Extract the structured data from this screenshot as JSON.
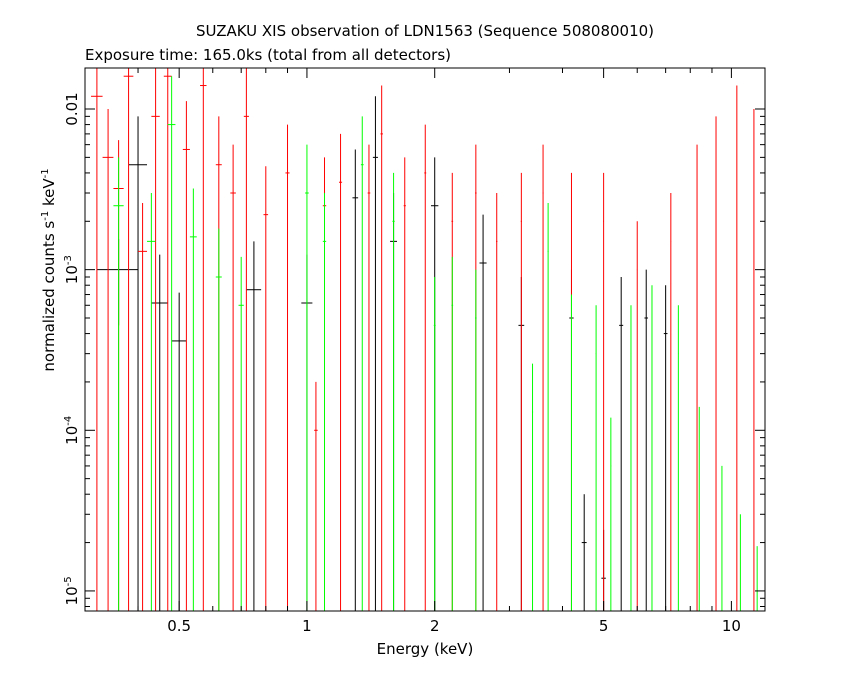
{
  "chart_data": {
    "type": "scatter",
    "title": "SUZAKU XIS observation of LDN1563 (Sequence 508080010)",
    "subtitle": "Exposure time: 165.0ks (total from all detectors)",
    "xlabel": "Energy (keV)",
    "ylabel_main": "normalized counts s",
    "ylabel_mid": " keV",
    "ylabel_sup": "-1",
    "xscale": "log",
    "yscale": "log",
    "xlim": [
      0.3,
      12
    ],
    "ylim": [
      7.5e-06,
      0.018
    ],
    "x_ticks": [
      {
        "value": 0.5,
        "label": "0.5"
      },
      {
        "value": 1,
        "label": "1"
      },
      {
        "value": 2,
        "label": "2"
      },
      {
        "value": 5,
        "label": "5"
      },
      {
        "value": 10,
        "label": "10"
      }
    ],
    "y_ticks": [
      {
        "value": 1e-05,
        "base": "10",
        "exp": "-5"
      },
      {
        "value": 0.0001,
        "base": "10",
        "exp": "-4"
      },
      {
        "value": 0.001,
        "base": "10",
        "exp": "-3"
      },
      {
        "value": 0.01,
        "base": "0.01",
        "exp": ""
      }
    ],
    "series": [
      {
        "color": "#000000",
        "points": [
          [
            0.36,
            0.001,
            0.04,
            0.00055
          ],
          [
            0.4,
            0.0045,
            0.02,
            0.0045
          ],
          [
            0.45,
            0.00062,
            0.02,
            0.00062
          ],
          [
            0.5,
            0.00036,
            0.02,
            0.00036
          ],
          [
            0.75,
            0.00075,
            0.03,
            0.00075
          ],
          [
            1.0,
            0.00062,
            0.03,
            0.00062
          ],
          [
            1.3,
            0.0028,
            0.02,
            0.0028
          ],
          [
            1.45,
            0.005,
            0.02,
            0.007
          ],
          [
            1.6,
            0.0015,
            0.03,
            0.0015
          ],
          [
            2.0,
            0.0025,
            0.04,
            0.0025
          ],
          [
            2.6,
            0.0011,
            0.05,
            0.0011
          ],
          [
            3.2,
            0.00045,
            0.05,
            0.00045
          ],
          [
            4.2,
            0.0005,
            0.05,
            0.0005
          ],
          [
            4.5,
            2e-05,
            0.06,
            2e-05
          ],
          [
            5.0,
            1.2e-05,
            0.06,
            1.2e-05
          ],
          [
            5.5,
            0.00045,
            0.06,
            0.00045
          ],
          [
            6.3,
            0.0005,
            0.06,
            0.0005
          ],
          [
            7.0,
            0.0004,
            0.07,
            0.0004
          ]
        ]
      },
      {
        "color": "#ff0000",
        "points": [
          [
            0.32,
            0.012,
            0.01,
            0.012
          ],
          [
            0.34,
            0.005,
            0.01,
            0.005
          ],
          [
            0.36,
            0.0032,
            0.01,
            0.0032
          ],
          [
            0.38,
            0.016,
            0.01,
            0.016
          ],
          [
            0.41,
            0.0013,
            0.01,
            0.0013
          ],
          [
            0.44,
            0.009,
            0.01,
            0.009
          ],
          [
            0.47,
            0.016,
            0.01,
            0.016
          ],
          [
            0.52,
            0.0056,
            0.01,
            0.0056
          ],
          [
            0.57,
            0.014,
            0.01,
            0.014
          ],
          [
            0.62,
            0.0045,
            0.01,
            0.0045
          ],
          [
            0.67,
            0.003,
            0.01,
            0.003
          ],
          [
            0.72,
            0.009,
            0.01,
            0.009
          ],
          [
            0.8,
            0.0022,
            0.01,
            0.0022
          ],
          [
            0.9,
            0.004,
            0.01,
            0.004
          ],
          [
            1.05,
            0.0001,
            0.01,
            0.0001
          ],
          [
            1.1,
            0.0025,
            0.01,
            0.0025
          ],
          [
            1.2,
            0.0035,
            0.01,
            0.0035
          ],
          [
            1.4,
            0.003,
            0.01,
            0.003
          ],
          [
            1.5,
            0.007,
            0.01,
            0.007
          ],
          [
            1.7,
            0.0025,
            0.01,
            0.0025
          ],
          [
            1.9,
            0.004,
            0.01,
            0.004
          ],
          [
            2.2,
            0.002,
            0.01,
            0.002
          ],
          [
            2.5,
            0.003,
            0.01,
            0.003
          ],
          [
            2.8,
            0.0015,
            0.01,
            0.0015
          ],
          [
            3.2,
            0.002,
            0.01,
            0.002
          ],
          [
            3.6,
            0.003,
            0.01,
            0.003
          ],
          [
            4.2,
            0.002,
            0.01,
            0.002
          ],
          [
            5.0,
            0.002,
            0.01,
            0.002
          ],
          [
            6.0,
            0.001,
            0.01,
            0.001
          ],
          [
            7.2,
            0.0015,
            0.01,
            0.0015
          ],
          [
            8.3,
            0.003,
            0.01,
            0.003
          ],
          [
            9.2,
            0.0045,
            0.01,
            0.0045
          ],
          [
            10.3,
            0.007,
            0.01,
            0.007
          ],
          [
            11.3,
            0.005,
            0.01,
            0.005
          ]
        ]
      },
      {
        "color": "#00ff00",
        "points": [
          [
            0.36,
            0.0025,
            0.01,
            0.0025
          ],
          [
            0.43,
            0.0015,
            0.01,
            0.0015
          ],
          [
            0.48,
            0.008,
            0.01,
            0.008
          ],
          [
            0.54,
            0.0016,
            0.01,
            0.0016
          ],
          [
            0.62,
            0.0009,
            0.01,
            0.0009
          ],
          [
            0.7,
            0.0006,
            0.01,
            0.0006
          ],
          [
            1.0,
            0.003,
            0.01,
            0.003
          ],
          [
            1.1,
            0.0015,
            0.01,
            0.0015
          ],
          [
            1.35,
            0.0045,
            0.01,
            0.0045
          ],
          [
            1.6,
            0.002,
            0.01,
            0.002
          ],
          [
            2.0,
            0.00045,
            0.01,
            0.00045
          ],
          [
            2.2,
            0.0006,
            0.01,
            0.0006
          ],
          [
            2.5,
            0.0005,
            0.01,
            0.0005
          ],
          [
            3.4,
            0.00013,
            0.01,
            0.00013
          ],
          [
            3.7,
            0.0013,
            0.01,
            0.0013
          ],
          [
            4.2,
            0.00035,
            0.01,
            0.00035
          ],
          [
            4.8,
            0.0003,
            0.01,
            0.0003
          ],
          [
            5.2,
            6e-05,
            0.01,
            6e-05
          ],
          [
            5.8,
            0.0003,
            0.01,
            0.0003
          ],
          [
            6.5,
            0.0004,
            0.01,
            0.0004
          ],
          [
            7.5,
            0.0003,
            0.01,
            0.0003
          ],
          [
            8.4,
            7e-05,
            0.01,
            7e-05
          ],
          [
            9.5,
            3e-05,
            0.01,
            3e-05
          ],
          [
            10.5,
            1.5e-05,
            0.01,
            1.5e-05
          ],
          [
            11.5,
            9.5e-06,
            0.01,
            9.5e-06
          ]
        ]
      }
    ]
  }
}
